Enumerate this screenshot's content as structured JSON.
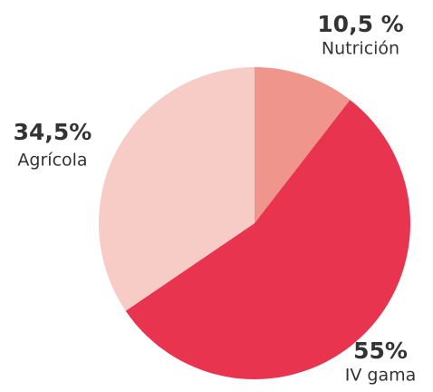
{
  "chart_data": {
    "type": "pie",
    "categories": [
      "Nutrición",
      "IV gama",
      "Agrícola"
    ],
    "values": [
      10.5,
      55,
      34.5
    ],
    "value_labels": [
      "10,5 %",
      "55%",
      "34,5%"
    ],
    "colors": [
      "#ef958b",
      "#e8344f",
      "#f7cbc6"
    ]
  }
}
